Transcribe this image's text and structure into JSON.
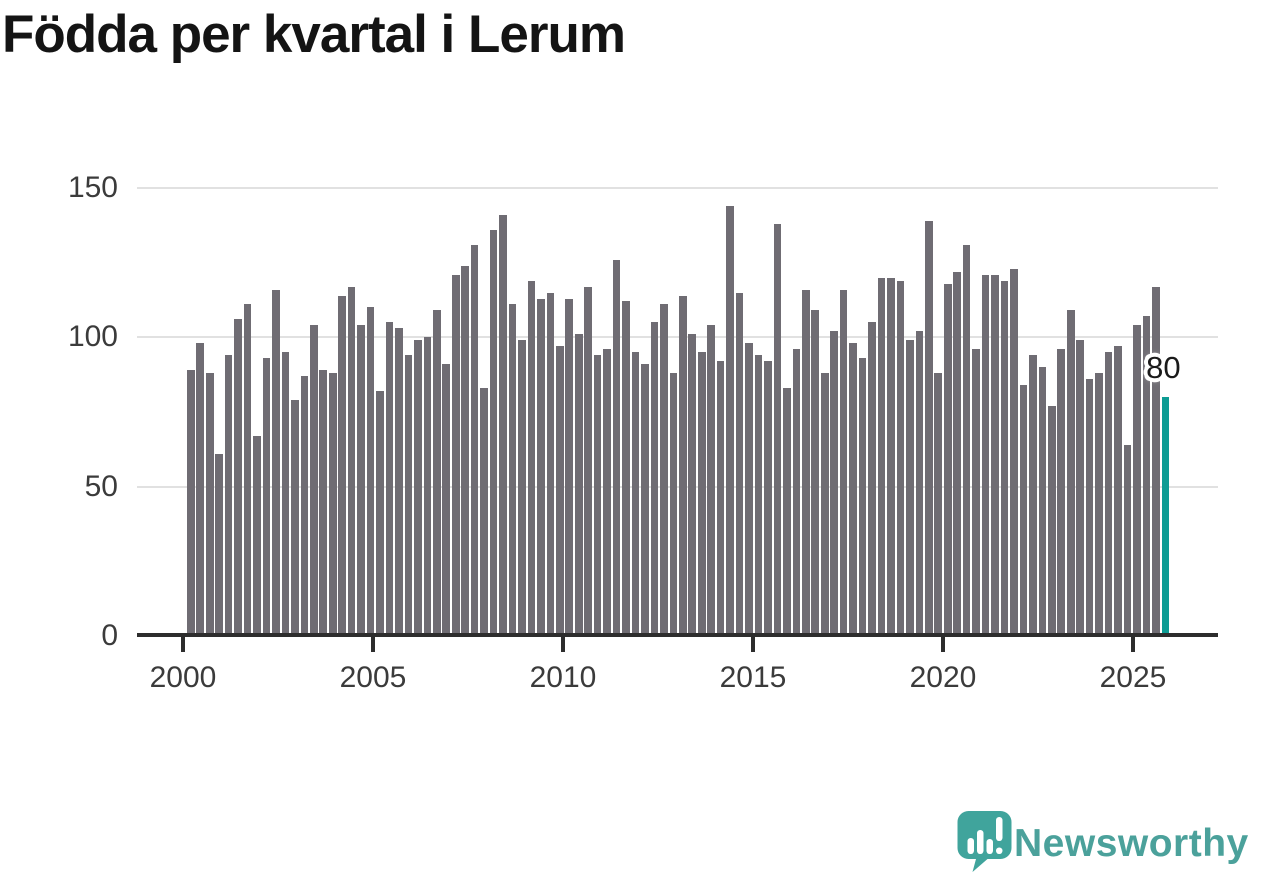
{
  "chart_data": {
    "type": "bar",
    "title": "Födda per kvartal i Lerum",
    "xlabel": "",
    "ylabel": "",
    "ylim": [
      0,
      150
    ],
    "y_ticks": [
      0,
      50,
      100,
      150
    ],
    "y_gridlines": [
      50,
      100,
      150
    ],
    "x_axis_ticks": [
      "2000",
      "2005",
      "2010",
      "2015",
      "2020",
      "2025"
    ],
    "period": "quarterly",
    "by_year": [
      {
        "year": 2000,
        "values": [
          89,
          98,
          88,
          61
        ]
      },
      {
        "year": 2001,
        "values": [
          94,
          106,
          111,
          67
        ]
      },
      {
        "year": 2002,
        "values": [
          93,
          116,
          95,
          79
        ]
      },
      {
        "year": 2003,
        "values": [
          87,
          104,
          89,
          88
        ]
      },
      {
        "year": 2004,
        "values": [
          114,
          117,
          104,
          110
        ]
      },
      {
        "year": 2005,
        "values": [
          82,
          105,
          103,
          94
        ]
      },
      {
        "year": 2006,
        "values": [
          99,
          100,
          109,
          91
        ]
      },
      {
        "year": 2007,
        "values": [
          121,
          124,
          131,
          83
        ]
      },
      {
        "year": 2008,
        "values": [
          136,
          141,
          111,
          99
        ]
      },
      {
        "year": 2009,
        "values": [
          119,
          113,
          115,
          97
        ]
      },
      {
        "year": 2010,
        "values": [
          113,
          101,
          117,
          94
        ]
      },
      {
        "year": 2011,
        "values": [
          96,
          126,
          112,
          95
        ]
      },
      {
        "year": 2012,
        "values": [
          91,
          105,
          111,
          88
        ]
      },
      {
        "year": 2013,
        "values": [
          114,
          101,
          95,
          104
        ]
      },
      {
        "year": 2014,
        "values": [
          92,
          144,
          115,
          98
        ]
      },
      {
        "year": 2015,
        "values": [
          94,
          92,
          138,
          83
        ]
      },
      {
        "year": 2016,
        "values": [
          96,
          116,
          109,
          88
        ]
      },
      {
        "year": 2017,
        "values": [
          102,
          116,
          98,
          93
        ]
      },
      {
        "year": 2018,
        "values": [
          105,
          120,
          120,
          119
        ]
      },
      {
        "year": 2019,
        "values": [
          99,
          102,
          139,
          88
        ]
      },
      {
        "year": 2020,
        "values": [
          118,
          122,
          131,
          96
        ]
      },
      {
        "year": 2021,
        "values": [
          121,
          121,
          119,
          123
        ]
      },
      {
        "year": 2022,
        "values": [
          84,
          94,
          90,
          77
        ]
      },
      {
        "year": 2023,
        "values": [
          96,
          109,
          99,
          86
        ]
      },
      {
        "year": 2024,
        "values": [
          88,
          95,
          97,
          64
        ]
      },
      {
        "year": 2025,
        "values": [
          104,
          107,
          117,
          80
        ]
      }
    ],
    "highlight": {
      "index": 103,
      "quarter": "2025 Q4",
      "value": 80,
      "label": "80"
    },
    "colors": {
      "bar": "#6f6c73",
      "highlight_bar": "#0d9c94",
      "axis": "#2d2d2d",
      "gridline": "#e1e1e1",
      "tick_label": "#3b3b3b",
      "title": "#141414"
    },
    "legend": "none",
    "grid": "horizontal"
  },
  "logo": {
    "brand": "Newsworthy",
    "icon": "newsworthy-speech-bubble-bar-chart-icon",
    "color": "#4ba19b"
  }
}
